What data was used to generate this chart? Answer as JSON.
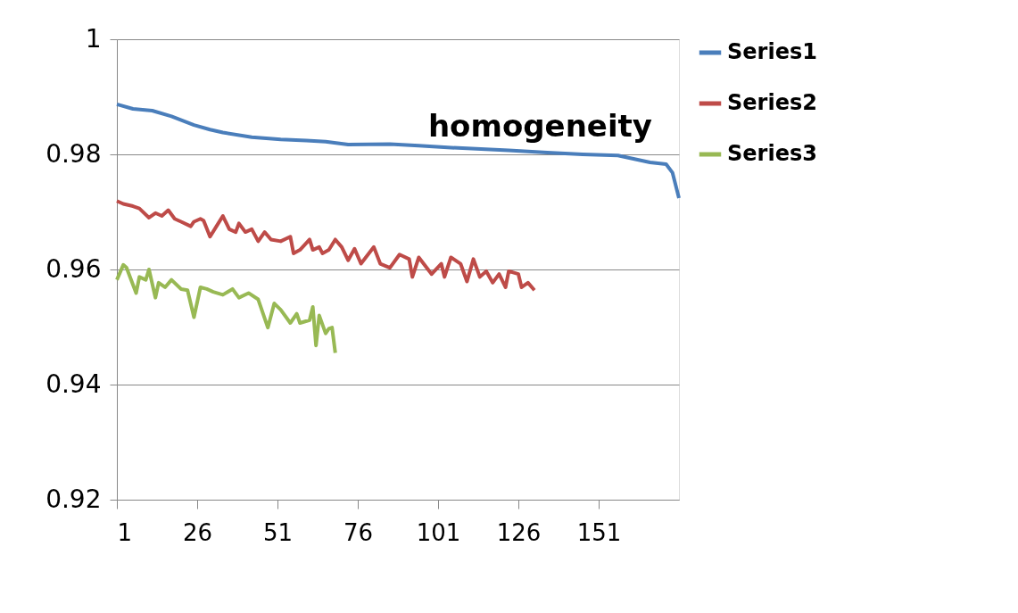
{
  "chart_data": {
    "type": "line",
    "title": "homogeneity",
    "xlim": [
      1,
      176
    ],
    "xticks": [
      1,
      26,
      51,
      76,
      101,
      126,
      151
    ],
    "ylim": [
      0.92,
      1
    ],
    "yticks": [
      0.92,
      0.94,
      0.96,
      0.98,
      1
    ],
    "grid": "y",
    "legend": "right",
    "marker": "none",
    "line_style": "solid",
    "series": [
      {
        "name": "Series1",
        "color": "#4a7ebb",
        "x": [
          1,
          6,
          12,
          18,
          25,
          30,
          34,
          43,
          52,
          60,
          66,
          73,
          86,
          95,
          104,
          123,
          135,
          146,
          157,
          167,
          172,
          174,
          176
        ],
        "values": [
          0.9887,
          0.9879,
          0.9876,
          0.9866,
          0.9851,
          0.9843,
          0.9838,
          0.983,
          0.9826,
          0.9824,
          0.9822,
          0.9817,
          0.9818,
          0.9815,
          0.9812,
          0.9807,
          0.9803,
          0.98,
          0.9798,
          0.9786,
          0.9783,
          0.9768,
          0.9724
        ]
      },
      {
        "name": "Series2",
        "color": "#be4b48",
        "x": [
          1,
          3,
          6,
          8,
          11,
          13,
          15,
          17,
          19,
          21,
          24,
          25,
          27,
          28,
          30,
          32,
          34,
          36,
          38,
          39,
          41,
          43,
          45,
          47,
          49,
          52,
          55,
          56,
          58,
          61,
          62,
          64,
          65,
          67,
          69,
          71,
          73,
          74,
          75,
          77,
          81,
          83,
          86,
          89,
          92,
          93,
          95,
          99,
          102,
          103,
          105,
          108,
          110,
          112,
          114,
          116,
          118,
          120,
          122,
          123,
          126,
          127,
          129,
          131
        ],
        "values": [
          0.9719,
          0.9714,
          0.971,
          0.9706,
          0.969,
          0.9698,
          0.9693,
          0.9703,
          0.9688,
          0.9683,
          0.9675,
          0.9683,
          0.9688,
          0.9685,
          0.9657,
          0.9675,
          0.9693,
          0.967,
          0.9665,
          0.968,
          0.9665,
          0.967,
          0.9649,
          0.9665,
          0.9652,
          0.9649,
          0.9657,
          0.9628,
          0.9634,
          0.9652,
          0.9634,
          0.9639,
          0.9628,
          0.9634,
          0.9652,
          0.9639,
          0.9616,
          0.9626,
          0.9636,
          0.961,
          0.9639,
          0.961,
          0.9603,
          0.9626,
          0.9618,
          0.9587,
          0.9621,
          0.9592,
          0.961,
          0.9587,
          0.9621,
          0.961,
          0.9579,
          0.9618,
          0.9587,
          0.9597,
          0.9577,
          0.9592,
          0.9569,
          0.9597,
          0.9592,
          0.9569,
          0.9577,
          0.9564
        ]
      },
      {
        "name": "Series3",
        "color": "#98b954",
        "x": [
          1,
          3,
          4,
          7,
          8,
          10,
          11,
          13,
          14,
          16,
          18,
          21,
          23,
          25,
          27,
          29,
          31,
          34,
          37,
          39,
          42,
          45,
          48,
          50,
          52,
          55,
          57,
          58,
          61,
          62,
          63,
          64,
          66,
          67,
          68,
          69
        ],
        "values": [
          0.9582,
          0.9608,
          0.9603,
          0.9559,
          0.9587,
          0.9582,
          0.96,
          0.9551,
          0.9577,
          0.9569,
          0.9582,
          0.9566,
          0.9564,
          0.9517,
          0.9569,
          0.9566,
          0.9561,
          0.9556,
          0.9566,
          0.9551,
          0.9559,
          0.9548,
          0.9499,
          0.9541,
          0.953,
          0.9507,
          0.9523,
          0.9507,
          0.9512,
          0.9535,
          0.9468,
          0.952,
          0.9489,
          0.9497,
          0.9499,
          0.9455
        ]
      }
    ]
  }
}
